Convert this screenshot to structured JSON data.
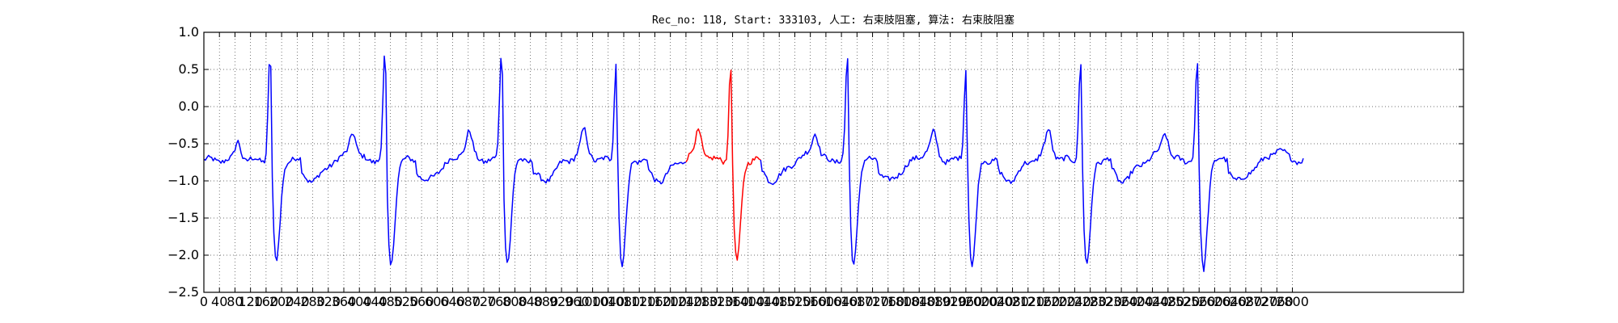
{
  "chart_data": {
    "type": "line",
    "title": "Rec_no: 118, Start: 333103, 人工: 右束肢阻塞, 算法: 右束肢阻塞",
    "xlabel": "",
    "ylabel": "",
    "xlim": [
      0,
      3240
    ],
    "ylim": [
      -2.5,
      1.0
    ],
    "yticks": [
      -2.5,
      -2.0,
      -1.5,
      -1.0,
      -0.5,
      0.0,
      0.5,
      1.0
    ],
    "ytick_labels": [
      "−2.5",
      "−2.0",
      "−1.5",
      "−1.0",
      "−0.5",
      "0.0",
      "0.5",
      "1.0"
    ],
    "xtick_step": 40,
    "xtick_max": 2800,
    "grid": true,
    "colors": {
      "normal": "#0000ff",
      "highlight": "#ff0000"
    },
    "highlight_range": [
      1244,
      1434
    ],
    "signal": {
      "sampling_step": 4,
      "x_start": 0,
      "x_end": 2830,
      "beats_x": [
        170,
        465,
        765,
        1060,
        1355,
        1655,
        1960,
        2255,
        2555
      ],
      "beat_peaks_y": [
        0.68,
        0.67,
        0.71,
        0.61,
        0.53,
        0.65,
        0.52,
        0.6,
        0.59
      ],
      "beat_troughs_y": [
        -2.1,
        -2.15,
        -2.08,
        -2.15,
        -2.1,
        -2.12,
        -2.15,
        -2.15,
        -2.2
      ]
    }
  }
}
